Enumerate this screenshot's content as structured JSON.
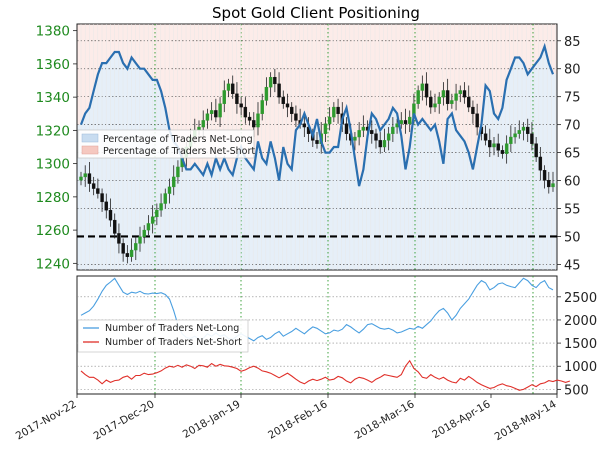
{
  "chart_data": {
    "title": "Spot Gold Client Positioning",
    "x_labels": [
      "2017-Nov-22",
      "2017-Dec-20",
      "2018-Jan-19",
      "2018-Feb-16",
      "2018-Mar-16",
      "2018-Apr-16",
      "2018-May-14"
    ],
    "top": {
      "type": "candlestick+line",
      "left_axis": {
        "ticks": [
          1240,
          1260,
          1280,
          1300,
          1320,
          1340,
          1360,
          1380
        ],
        "ylim": [
          1236,
          1384
        ],
        "color": "#1f8a1f"
      },
      "right_axis": {
        "ticks": [
          45,
          50,
          55,
          60,
          65,
          70,
          75,
          80,
          85
        ],
        "ylim": [
          44,
          88
        ]
      },
      "reference_line": 50,
      "price_close": [
        1292,
        1294,
        1288,
        1285,
        1282,
        1277,
        1272,
        1266,
        1258,
        1252,
        1246,
        1244,
        1248,
        1252,
        1256,
        1260,
        1264,
        1268,
        1272,
        1276,
        1282,
        1286,
        1292,
        1298,
        1304,
        1310,
        1316,
        1320,
        1322,
        1326,
        1330,
        1332,
        1328,
        1336,
        1344,
        1348,
        1342,
        1336,
        1334,
        1328,
        1326,
        1322,
        1330,
        1338,
        1346,
        1352,
        1348,
        1340,
        1336,
        1334,
        1330,
        1326,
        1324,
        1322,
        1318,
        1314,
        1312,
        1318,
        1324,
        1328,
        1334,
        1330,
        1324,
        1318,
        1314,
        1316,
        1320,
        1322,
        1320,
        1318,
        1314,
        1310,
        1314,
        1318,
        1322,
        1324,
        1326,
        1324,
        1328,
        1336,
        1344,
        1348,
        1340,
        1334,
        1336,
        1340,
        1344,
        1336,
        1338,
        1342,
        1344,
        1340,
        1334,
        1330,
        1322,
        1318,
        1314,
        1310,
        1312,
        1308,
        1306,
        1312,
        1316,
        1318,
        1320,
        1322,
        1318,
        1312,
        1304,
        1296,
        1290,
        1286,
        1288
      ],
      "pct_net_long": [
        70,
        72,
        73,
        76,
        79,
        81,
        81,
        82,
        83,
        83,
        81,
        80,
        82,
        81,
        80,
        80,
        79,
        78,
        78,
        76,
        73,
        69,
        67,
        66,
        64,
        62,
        62,
        63,
        62,
        61,
        63,
        61,
        64,
        62,
        64,
        62,
        61,
        64,
        66,
        64,
        63,
        62,
        67,
        64,
        63,
        67,
        64,
        60,
        66,
        63,
        62,
        69,
        70,
        72,
        70,
        68,
        71,
        67,
        65,
        65,
        66,
        66,
        71,
        73,
        69,
        64,
        59,
        62,
        68,
        72,
        71,
        69,
        70,
        71,
        73,
        72,
        68,
        62,
        66,
        72,
        70,
        71,
        70,
        69,
        70,
        67,
        63,
        71,
        72,
        69,
        68,
        67,
        65,
        62,
        66,
        70,
        77,
        76,
        72,
        71,
        73,
        78,
        80,
        82,
        82,
        81,
        79,
        80,
        81,
        82,
        84,
        81,
        79
      ]
    },
    "bottom": {
      "type": "line",
      "right_axis": {
        "ticks": [
          500,
          1000,
          1500,
          2000,
          2500
        ],
        "ylim": [
          400,
          2950
        ]
      },
      "series": [
        {
          "name": "Number of Traders Net-Long",
          "color": "#4a9fe0",
          "values": [
            2100,
            2150,
            2200,
            2300,
            2450,
            2620,
            2750,
            2820,
            2900,
            2750,
            2600,
            2550,
            2600,
            2580,
            2620,
            2570,
            2560,
            2580,
            2570,
            2590,
            2550,
            2450,
            2200,
            1900,
            1700,
            1620,
            1600,
            1650,
            1580,
            1600,
            1700,
            1650,
            1720,
            1650,
            1680,
            1600,
            1580,
            1650,
            1700,
            1650,
            1600,
            1550,
            1620,
            1660,
            1580,
            1620,
            1700,
            1750,
            1650,
            1700,
            1750,
            1820,
            1760,
            1700,
            1780,
            1850,
            1820,
            1760,
            1700,
            1720,
            1780,
            1760,
            1800,
            1900,
            1850,
            1780,
            1720,
            1800,
            1900,
            1920,
            1870,
            1820,
            1800,
            1820,
            1780,
            1720,
            1740,
            1780,
            1820,
            1800,
            1860,
            1820,
            1900,
            1980,
            2100,
            2200,
            2250,
            2150,
            2000,
            2100,
            2250,
            2350,
            2450,
            2600,
            2750,
            2850,
            2800,
            2650,
            2700,
            2780,
            2800,
            2750,
            2720,
            2700,
            2800,
            2900,
            2850,
            2750,
            2700,
            2800,
            2850,
            2700,
            2650
          ]
        },
        {
          "name": "Number of Traders Net-Short",
          "color": "#e0302a",
          "values": [
            900,
            820,
            760,
            760,
            700,
            620,
            700,
            650,
            690,
            700,
            760,
            790,
            720,
            800,
            800,
            850,
            820,
            830,
            860,
            900,
            960,
            1000,
            980,
            1020,
            980,
            1030,
            1000,
            950,
            1020,
            1010,
            980,
            1060,
            1000,
            1040,
            1010,
            1000,
            980,
            950,
            890,
            920,
            970,
            1000,
            960,
            900,
            880,
            850,
            800,
            750,
            800,
            850,
            790,
            720,
            660,
            620,
            680,
            720,
            690,
            720,
            760,
            700,
            720,
            780,
            750,
            680,
            640,
            720,
            760,
            740,
            700,
            650,
            720,
            760,
            820,
            800,
            780,
            760,
            820,
            1000,
            1120,
            950,
            880,
            760,
            740,
            820,
            760,
            720,
            760,
            700,
            660,
            640,
            740,
            700,
            780,
            720,
            650,
            600,
            560,
            520,
            540,
            590,
            620,
            580,
            560,
            520,
            480,
            500,
            550,
            600,
            560,
            620,
            640,
            690,
            670,
            700,
            680,
            650,
            680
          ]
        }
      ]
    },
    "legend_top": [
      {
        "label": "Percentage of Traders Net-Long",
        "color": "#c8dcf0"
      },
      {
        "label": "Percentage of Traders Net-Short",
        "color": "#f5c8c0"
      }
    ]
  }
}
